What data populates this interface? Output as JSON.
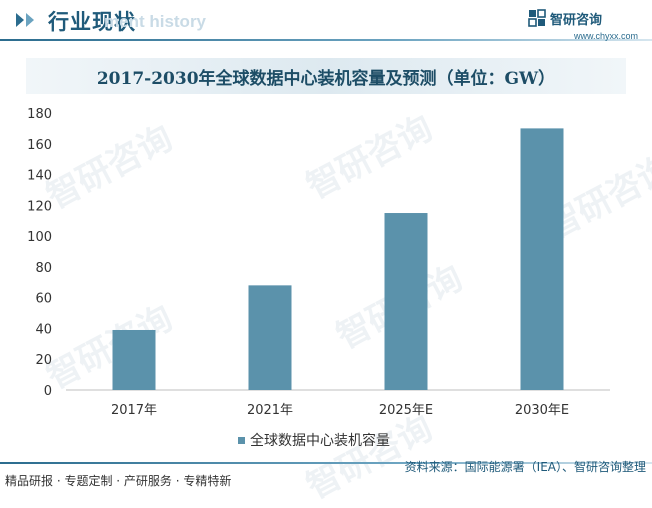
{
  "header": {
    "title": "行业现状",
    "watermark": "ment history"
  },
  "brand": {
    "name": "智研咨询",
    "url": "www.chyxx.com",
    "watermark_text": "智研咨询"
  },
  "legend": {
    "label": "全球数据中心装机容量"
  },
  "footer": {
    "tagline": "精品研报 · 专题定制 · 产研服务 · 专精特新",
    "source": "资料来源：国际能源署（IEA）、智研咨询整理"
  },
  "colors": {
    "bar": "#5b92ab",
    "accent": "#1f5a7a"
  },
  "chart_data": {
    "type": "bar",
    "title": "2017-2030年全球数据中心装机容量及预测（单位：GW）",
    "categories": [
      "2017年",
      "2021年",
      "2025年E",
      "2030年E"
    ],
    "series": [
      {
        "name": "全球数据中心装机容量",
        "values": [
          39,
          68,
          115,
          170
        ]
      }
    ],
    "ylim": [
      0,
      180
    ],
    "yticks": [
      0,
      20,
      40,
      60,
      80,
      100,
      120,
      140,
      160,
      180
    ],
    "grid": false,
    "legend_position": "bottom"
  }
}
